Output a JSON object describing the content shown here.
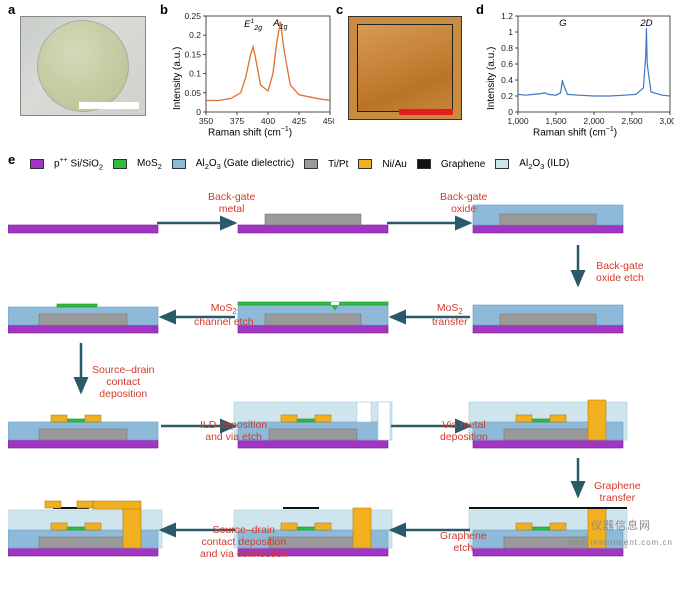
{
  "panels": {
    "a": {
      "label": "a"
    },
    "b": {
      "label": "b",
      "chart": {
        "type": "line",
        "xlabel_html": "Raman shift (cm<sup>−1</sup>)",
        "ylabel": "Intensity (a.u.)",
        "line_color": "#e07030",
        "xlim": [
          350,
          450
        ],
        "xtick_step": 25,
        "ylim": [
          0,
          0.25
        ],
        "yticks": [
          0,
          0.05,
          0.1,
          0.15,
          0.2,
          0.25
        ],
        "peaks": [
          {
            "label_html": "E<sup>1</sup><sub>2g</sub>",
            "x": 388
          },
          {
            "label_html": "A<sub>1g</sub>",
            "x": 410
          }
        ],
        "series": [
          [
            350,
            0.03
          ],
          [
            360,
            0.03
          ],
          [
            370,
            0.035
          ],
          [
            378,
            0.05
          ],
          [
            382,
            0.09
          ],
          [
            386,
            0.15
          ],
          [
            388,
            0.17
          ],
          [
            390,
            0.14
          ],
          [
            394,
            0.07
          ],
          [
            400,
            0.055
          ],
          [
            404,
            0.1
          ],
          [
            407,
            0.18
          ],
          [
            410,
            0.235
          ],
          [
            413,
            0.16
          ],
          [
            418,
            0.07
          ],
          [
            425,
            0.045
          ],
          [
            440,
            0.035
          ],
          [
            450,
            0.03
          ]
        ],
        "axis_color": "#222222",
        "background": "#ffffff",
        "title_fontsize": 10,
        "tick_fontsize": 8.5,
        "line_width": 1.3
      }
    },
    "c": {
      "label": "c",
      "scalebar_color": "#e02020"
    },
    "d": {
      "label": "d",
      "chart": {
        "type": "line",
        "xlabel_html": "Raman shift (cm<sup>−1</sup>)",
        "ylabel": "Intensity (a.u.)",
        "line_color": "#3e78c0",
        "xlim": [
          1000,
          3000
        ],
        "xticks": [
          1000,
          1500,
          2000,
          2500,
          3000
        ],
        "ylim": [
          0,
          1.2
        ],
        "ytick_step": 0.2,
        "peaks": [
          {
            "label_html": "G",
            "x": 1590
          },
          {
            "label_html": "2D",
            "x": 2690
          }
        ],
        "series": [
          [
            1000,
            0.22
          ],
          [
            1100,
            0.21
          ],
          [
            1200,
            0.22
          ],
          [
            1300,
            0.23
          ],
          [
            1350,
            0.24
          ],
          [
            1400,
            0.22
          ],
          [
            1500,
            0.21
          ],
          [
            1560,
            0.24
          ],
          [
            1585,
            0.4
          ],
          [
            1595,
            0.35
          ],
          [
            1650,
            0.22
          ],
          [
            1800,
            0.21
          ],
          [
            2000,
            0.2
          ],
          [
            2200,
            0.2
          ],
          [
            2400,
            0.21
          ],
          [
            2550,
            0.22
          ],
          [
            2650,
            0.3
          ],
          [
            2680,
            0.7
          ],
          [
            2690,
            1.05
          ],
          [
            2700,
            0.6
          ],
          [
            2750,
            0.25
          ],
          [
            2900,
            0.21
          ],
          [
            3000,
            0.2
          ]
        ],
        "axis_color": "#222222",
        "background": "#ffffff",
        "title_fontsize": 10,
        "tick_fontsize": 8.5,
        "line_width": 1.2
      }
    },
    "e": {
      "label": "e"
    }
  },
  "legend": [
    {
      "color": "#a335c4",
      "label_html": "p<sup>++</sup> Si/SiO<sub>2</sub>"
    },
    {
      "color": "#2fbf3f",
      "label_html": "MoS<sub>2</sub>"
    },
    {
      "color": "#8fb9d8",
      "label_html": "Al<sub>2</sub>O<sub>3</sub> (Gate dielectric)"
    },
    {
      "color": "#9a9a9a",
      "label_html": "Ti/Pt"
    },
    {
      "color": "#f0b020",
      "label_html": "Ni/Au"
    },
    {
      "color": "#111111",
      "label_html": "Graphene"
    },
    {
      "color": "#cfe5ee",
      "label_html": "Al<sub>2</sub>O<sub>3</sub> (ILD)"
    }
  ],
  "colors": {
    "substrate": "#a335c4",
    "mos2": "#2fbf3f",
    "gate_oxide": "#8fb9d8",
    "tipt": "#9a9a9a",
    "niau": "#f0b020",
    "graphene": "#111111",
    "ild": "#cfe5ee",
    "arrow": "#2a5a6a",
    "step_text": "#d43a2a"
  },
  "flow": {
    "steps": [
      {
        "label_html": "Back-gate<br>metal"
      },
      {
        "label_html": "Back-gate<br>oxide"
      },
      {
        "label_html": "Back-gate<br>oxide etch"
      },
      {
        "label_html": "MoS<sub>2</sub><br>transfer"
      },
      {
        "label_html": "MoS<sub>2</sub><br>channel etch"
      },
      {
        "label_html": "Source–drain<br>contact<br>deposition"
      },
      {
        "label_html": "ILD deposition<br>and via etch"
      },
      {
        "label_html": "Via metal<br>deposition"
      },
      {
        "label_html": "Graphene<br>transfer"
      },
      {
        "label_html": "Graphene<br>etch"
      },
      {
        "label_html": "Source–drain<br>contact deposition<br>and via connection"
      }
    ]
  },
  "watermark": {
    "text1": "仪器信息网",
    "text2": "www.instrument.com.cn"
  }
}
